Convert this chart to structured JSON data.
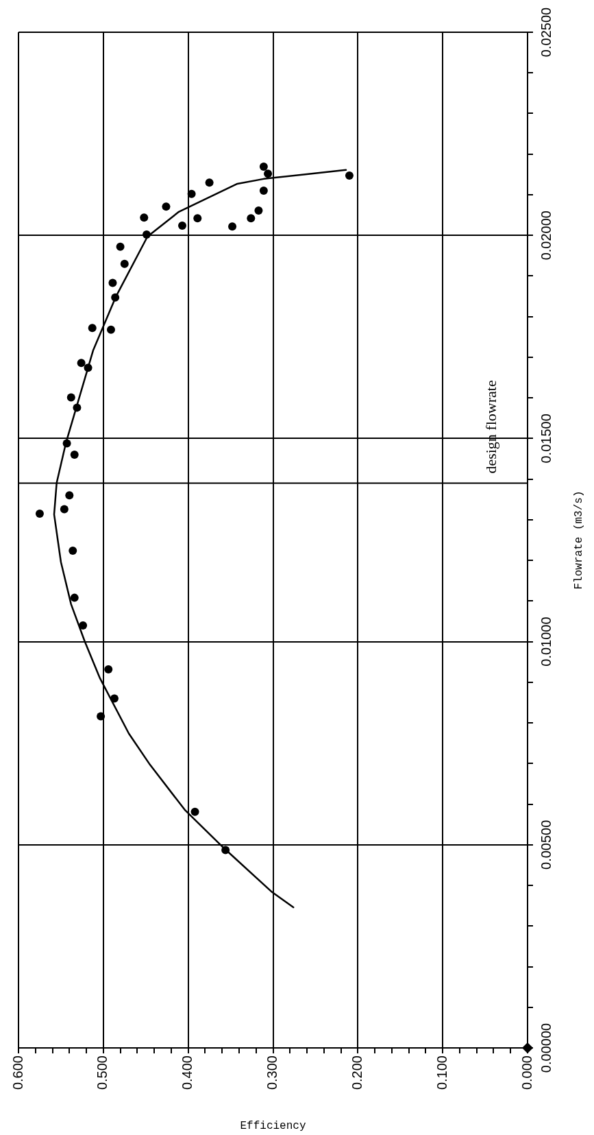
{
  "chart_data": {
    "type": "scatter",
    "xlabel": "Efficiency",
    "ylabel": "Flowrate (m3/s)",
    "xlim": [
      0.6,
      0
    ],
    "ylim": [
      0,
      0.025
    ],
    "yticks": [
      {
        "value": 0,
        "label": "0.00000"
      },
      {
        "value": 0.001,
        "label": null
      },
      {
        "value": 0.002,
        "label": null
      },
      {
        "value": 0.003,
        "label": null
      },
      {
        "value": 0.004,
        "label": null
      },
      {
        "value": 0.005,
        "label": "0.00500"
      },
      {
        "value": 0.006,
        "label": null
      },
      {
        "value": 0.007,
        "label": null
      },
      {
        "value": 0.008,
        "label": null
      },
      {
        "value": 0.009,
        "label": null
      },
      {
        "value": 0.01,
        "label": "0.01000"
      },
      {
        "value": 0.011,
        "label": null
      },
      {
        "value": 0.012,
        "label": null
      },
      {
        "value": 0.013,
        "label": null
      },
      {
        "value": 0.014,
        "label": null
      },
      {
        "value": 0.015,
        "label": "0.01500"
      },
      {
        "value": 0.016,
        "label": null
      },
      {
        "value": 0.017,
        "label": null
      },
      {
        "value": 0.018,
        "label": null
      },
      {
        "value": 0.019,
        "label": null
      },
      {
        "value": 0.02,
        "label": "0.02000"
      },
      {
        "value": 0.021,
        "label": null
      },
      {
        "value": 0.022,
        "label": null
      },
      {
        "value": 0.023,
        "label": null
      },
      {
        "value": 0.024,
        "label": null
      },
      {
        "value": 0.025,
        "label": "0.02500"
      }
    ],
    "xticks": [
      {
        "value": 0.6,
        "label": "0.600"
      },
      {
        "value": 0.58,
        "label": null
      },
      {
        "value": 0.56,
        "label": null
      },
      {
        "value": 0.54,
        "label": null
      },
      {
        "value": 0.52,
        "label": null
      },
      {
        "value": 0.5,
        "label": "0.500"
      },
      {
        "value": 0.48,
        "label": null
      },
      {
        "value": 0.46,
        "label": null
      },
      {
        "value": 0.44,
        "label": null
      },
      {
        "value": 0.42,
        "label": null
      },
      {
        "value": 0.4,
        "label": "0.400"
      },
      {
        "value": 0.38,
        "label": null
      },
      {
        "value": 0.36,
        "label": null
      },
      {
        "value": 0.34,
        "label": null
      },
      {
        "value": 0.32,
        "label": null
      },
      {
        "value": 0.3,
        "label": "0.300"
      },
      {
        "value": 0.28,
        "label": null
      },
      {
        "value": 0.26,
        "label": null
      },
      {
        "value": 0.24,
        "label": null
      },
      {
        "value": 0.22,
        "label": null
      },
      {
        "value": 0.2,
        "label": "0.200"
      },
      {
        "value": 0.18,
        "label": null
      },
      {
        "value": 0.16,
        "label": null
      },
      {
        "value": 0.14,
        "label": null
      },
      {
        "value": 0.12,
        "label": null
      },
      {
        "value": 0.1,
        "label": "0.100"
      },
      {
        "value": 0.08,
        "label": null
      },
      {
        "value": 0.06,
        "label": null
      },
      {
        "value": 0.04,
        "label": null
      },
      {
        "value": 0.02,
        "label": null
      },
      {
        "value": 0,
        "label": "0.000"
      }
    ],
    "grid": true,
    "ref_lines": [
      {
        "axis": "y",
        "value": 0.0139,
        "label": "design flowrate",
        "color": "#000000",
        "line_style": "solid"
      }
    ],
    "series": [
      {
        "marker": "circle",
        "color": "#000000",
        "values": [
          0.02169,
          0.02152,
          0.0213,
          0.02102,
          0.02071,
          0.0211,
          0.02061,
          0.02042,
          0.02022,
          0.02042,
          0.02024,
          0.02044,
          0.02002,
          0.02147,
          0.01972,
          0.0193,
          0.01883,
          0.01847,
          0.01772,
          0.01768,
          0.01686,
          0.01674,
          0.01601,
          0.01576,
          0.01488,
          0.0146,
          0.0136,
          0.01326,
          0.01315,
          0.01224,
          0.01108,
          0.0104,
          0.00932,
          0.0086,
          0.00816,
          0.00581,
          0.00487
        ],
        "x": [
          0.311,
          0.306,
          0.375,
          0.396,
          0.426,
          0.311,
          0.317,
          0.326,
          0.348,
          0.389,
          0.407,
          0.452,
          0.449,
          0.21,
          0.48,
          0.475,
          0.489,
          0.486,
          0.513,
          0.491,
          0.526,
          0.518,
          0.538,
          0.531,
          0.543,
          0.534,
          0.54,
          0.546,
          0.575,
          0.536,
          0.534,
          0.524,
          0.494,
          0.487,
          0.503,
          0.392,
          0.356
        ]
      },
      {
        "type": "line",
        "marker": "none",
        "color": "#000000",
        "values": [
          0.00346,
          0.00385,
          0.00492,
          0.00586,
          0.00697,
          0.00774,
          0.0091,
          0.01001,
          0.01092,
          0.01196,
          0.01313,
          0.01391,
          0.0149,
          0.01717,
          0.0185,
          0.01997,
          0.02058,
          0.02127,
          0.02139,
          0.02161
        ],
        "x": [
          0.276,
          0.302,
          0.358,
          0.404,
          0.445,
          0.47,
          0.504,
          0.522,
          0.538,
          0.55,
          0.558,
          0.555,
          0.544,
          0.512,
          0.485,
          0.448,
          0.411,
          0.342,
          0.311,
          0.214
        ]
      },
      {
        "marker": "diamond",
        "color": "#000000",
        "x": [
          0
        ],
        "values": [
          0
        ]
      }
    ]
  }
}
